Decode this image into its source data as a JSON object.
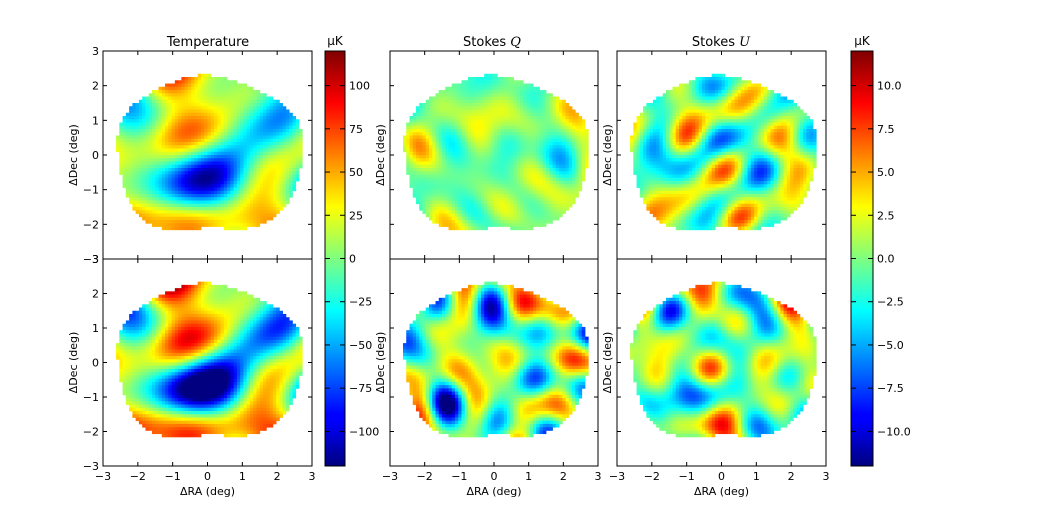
{
  "chart_data": {
    "type": "heatmap",
    "colormap": "jet",
    "grid": false,
    "panels": [
      {
        "id": "t-top",
        "title": "Temperature",
        "row": 0,
        "col": 0,
        "xlabel": "",
        "ylabel": "ΔDec (deg)",
        "xlim": [
          -3,
          3
        ],
        "ylim": [
          -3,
          3
        ],
        "xticks": [
          "−3",
          "−2",
          "−1",
          "0",
          "1",
          "2",
          "3"
        ],
        "yticks": [
          "−3",
          "−2",
          "−1",
          "0",
          "1",
          "2",
          "3"
        ],
        "colorbar": "left",
        "field_scale": 1.0
      },
      {
        "id": "q-top",
        "title": "Stokes Q",
        "row": 0,
        "col": 1,
        "xlabel": "",
        "ylabel": "ΔDec (deg)",
        "xlim": [
          -3,
          3
        ],
        "ylim": [
          -3,
          3
        ],
        "xticks": [
          "−3",
          "−2",
          "−1",
          "0",
          "1",
          "2",
          "3"
        ],
        "yticks": [
          "−3",
          "−2",
          "−1",
          "0",
          "1",
          "2",
          "3"
        ],
        "colorbar": "right",
        "field_scale": 0.6
      },
      {
        "id": "u-top",
        "title": "Stokes U",
        "row": 0,
        "col": 2,
        "xlabel": "",
        "ylabel": "ΔDec (deg)",
        "xlim": [
          -3,
          3
        ],
        "ylim": [
          -3,
          3
        ],
        "xticks": [
          "−3",
          "−2",
          "−1",
          "0",
          "1",
          "2",
          "3"
        ],
        "yticks": [
          "−3",
          "−2",
          "−1",
          "0",
          "1",
          "2",
          "3"
        ],
        "colorbar": "right",
        "field_scale": 0.65
      },
      {
        "id": "t-bot",
        "title": "",
        "row": 1,
        "col": 0,
        "xlabel": "ΔRA (deg)",
        "ylabel": "ΔDec (deg)",
        "xlim": [
          -3,
          3
        ],
        "ylim": [
          -3,
          3
        ],
        "xticks": [
          "−3",
          "−2",
          "−1",
          "0",
          "1",
          "2",
          "3"
        ],
        "yticks": [
          "−3",
          "−2",
          "−1",
          "0",
          "1",
          "2",
          "3"
        ],
        "colorbar": "left",
        "field_scale": 1.4
      },
      {
        "id": "q-bot",
        "title": "",
        "row": 1,
        "col": 1,
        "xlabel": "ΔRA (deg)",
        "ylabel": "ΔDec (deg)",
        "xlim": [
          -3,
          3
        ],
        "ylim": [
          -3,
          3
        ],
        "xticks": [
          "−3",
          "−2",
          "−1",
          "0",
          "1",
          "2",
          "3"
        ],
        "yticks": [
          "−3",
          "−2",
          "−1",
          "0",
          "1",
          "2",
          "3"
        ],
        "colorbar": "right",
        "field_scale": 0.95
      },
      {
        "id": "u-bot",
        "title": "",
        "row": 1,
        "col": 2,
        "xlabel": "ΔRA (deg)",
        "ylabel": "ΔDec (deg)",
        "xlim": [
          -3,
          3
        ],
        "ylim": [
          -3,
          3
        ],
        "xticks": [
          "−3",
          "−2",
          "−1",
          "0",
          "1",
          "2",
          "3"
        ],
        "yticks": [
          "−3",
          "−2",
          "−1",
          "0",
          "1",
          "2",
          "3"
        ],
        "colorbar": "right",
        "field_scale": 0.95
      }
    ],
    "colorbars": [
      {
        "id": "cb-temperature",
        "title": "μK",
        "vmin": -120,
        "vmax": 120,
        "ticks": [
          -100,
          -75,
          -50,
          -25,
          0,
          25,
          50,
          75,
          100
        ],
        "tick_labels": [
          "−100",
          "−75",
          "−50",
          "−25",
          "0",
          "25",
          "50",
          "75",
          "100"
        ]
      },
      {
        "id": "cb-polarization",
        "title": "μK",
        "vmin": -12,
        "vmax": 12,
        "ticks": [
          -10,
          -7.5,
          -5,
          -2.5,
          0,
          2.5,
          5,
          7.5,
          10
        ],
        "tick_labels": [
          "−10.0",
          "−7.5",
          "−5.0",
          "−2.5",
          "0.0",
          "2.5",
          "5.0",
          "7.5",
          "10.0"
        ]
      }
    ],
    "footprint": "irregular disc approx. x from -2.6 to 2.7 deg, y from -2.2 to 2.2 deg"
  }
}
